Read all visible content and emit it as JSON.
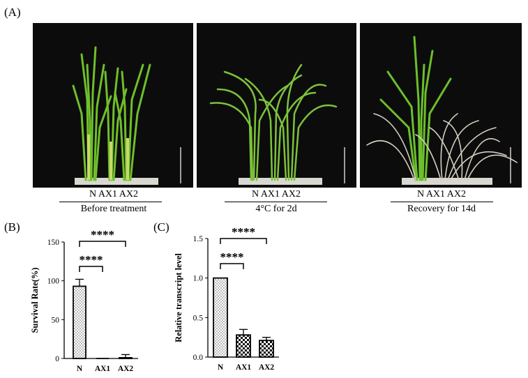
{
  "figure": {
    "label_a": "(A)",
    "label_b": "(B)",
    "label_c": "(C)"
  },
  "photos": [
    {
      "genotypes": "N  AX1  AX2",
      "condition": "Before treatment"
    },
    {
      "genotypes": "N  AX1  AX2",
      "condition": "4°C for 2d"
    },
    {
      "genotypes": "N  AX1 AX2",
      "condition": "Recovery for 14d"
    }
  ],
  "chart_data": [
    {
      "type": "bar",
      "ylabel": "Survival Rate(%)",
      "xlabel": "",
      "categories": [
        "N",
        "AX1",
        "AX2"
      ],
      "values": [
        93,
        0,
        1
      ],
      "errors": [
        9,
        0,
        4
      ],
      "ylim": [
        0,
        150
      ],
      "yticks": [
        0,
        50,
        100,
        150
      ],
      "ytick_labels": [
        "0",
        "50",
        "100",
        "150"
      ],
      "significance": [
        {
          "from": "N",
          "to": "AX1",
          "label": "****"
        },
        {
          "from": "N",
          "to": "AX2",
          "label": "****"
        }
      ],
      "patterns": [
        "dots",
        "dots",
        "checker"
      ]
    },
    {
      "type": "bar",
      "ylabel": "Relative transcript level",
      "xlabel": "",
      "categories": [
        "N",
        "AX1",
        "AX2"
      ],
      "values": [
        1.0,
        0.28,
        0.21
      ],
      "errors": [
        0,
        0.07,
        0.04
      ],
      "ylim": [
        0,
        1.5
      ],
      "yticks": [
        0,
        0.5,
        1.0,
        1.5
      ],
      "ytick_labels": [
        "0.0",
        "0.5",
        "1.0",
        "1.5"
      ],
      "significance": [
        {
          "from": "N",
          "to": "AX1",
          "label": "****"
        },
        {
          "from": "N",
          "to": "AX2",
          "label": "****"
        }
      ],
      "patterns": [
        "dots",
        "checker",
        "checker"
      ]
    }
  ]
}
